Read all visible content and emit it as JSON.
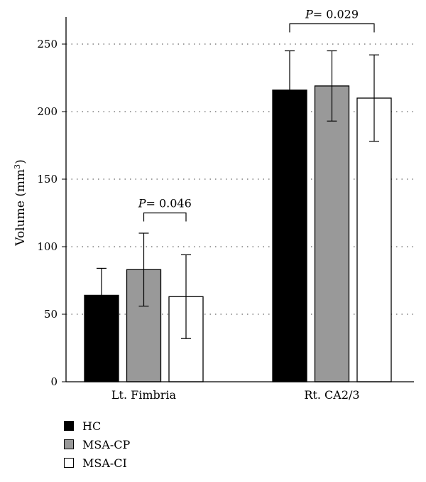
{
  "chart_data": {
    "type": "bar",
    "categories": [
      "Lt. Fimbria",
      "Rt. CA2/3"
    ],
    "ylabel_main": "Volume (mm",
    "ylabel_sup": "3",
    "ylabel_end": ")",
    "ylim": [
      0,
      270
    ],
    "yticks": [
      0,
      50,
      100,
      150,
      200,
      250
    ],
    "grid": "dotted horizontal",
    "series": [
      {
        "name": "HC",
        "color": "#000000",
        "values": [
          64,
          216
        ],
        "errors": [
          20,
          29
        ]
      },
      {
        "name": "MSA-CP",
        "color": "#999999",
        "values": [
          83,
          219
        ],
        "errors": [
          27,
          26
        ]
      },
      {
        "name": "MSA-CI",
        "color": "#ffffff",
        "values": [
          63,
          210
        ],
        "errors": [
          31,
          32
        ]
      }
    ],
    "annotations": [
      {
        "category": 0,
        "from_series": 1,
        "to_series": 2,
        "y": 125,
        "italic": "P",
        "text": "= 0.046"
      },
      {
        "category": 1,
        "from_series": 0,
        "to_series": 2,
        "y": 265,
        "italic": "P",
        "text": "= 0.029"
      }
    ],
    "legend_position": "bottom-left"
  }
}
